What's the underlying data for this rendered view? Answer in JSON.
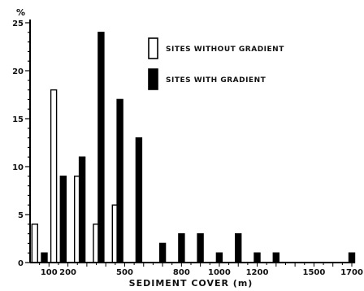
{
  "chart_data": {
    "type": "bar",
    "ylabel": "%",
    "xlabel": "SEDIMENT COVER (m)",
    "ylim": [
      0,
      25
    ],
    "xlim": [
      0,
      1700
    ],
    "yticks": [
      {
        "value": 0,
        "label": "0"
      },
      {
        "value": 5,
        "label": "5"
      },
      {
        "value": 10,
        "label": "10"
      },
      {
        "value": 15,
        "label": "15"
      },
      {
        "value": 20,
        "label": "20"
      },
      {
        "value": 25,
        "label": "25"
      }
    ],
    "xticks": [
      {
        "value": 100,
        "label": "100"
      },
      {
        "value": 200,
        "label": "200"
      },
      {
        "value": 500,
        "label": "500"
      },
      {
        "value": 800,
        "label": "800"
      },
      {
        "value": 1000,
        "label": "1000"
      },
      {
        "value": 1200,
        "label": "1200"
      },
      {
        "value": 1500,
        "label": "1500"
      },
      {
        "value": 1700,
        "label": "1700"
      }
    ],
    "series": [
      {
        "name": "SITES WITHOUT GRADIENT",
        "fill": "#ffffff",
        "x": [
          25,
          125,
          250,
          350,
          450
        ],
        "values": [
          4,
          18,
          9,
          4,
          6
        ]
      },
      {
        "name": "SITES WITH GRADIENT",
        "fill": "#000000",
        "x": [
          75,
          175,
          275,
          375,
          475,
          575,
          700,
          800,
          900,
          1000,
          1100,
          1200,
          1300,
          1700
        ],
        "values": [
          1,
          9,
          11,
          24,
          17,
          13,
          2,
          3,
          3,
          1,
          3,
          1,
          1,
          1
        ]
      }
    ]
  }
}
